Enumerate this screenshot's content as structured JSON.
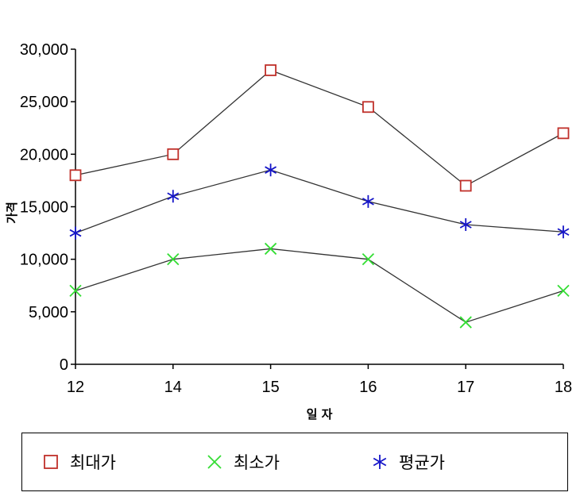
{
  "chart_data": {
    "type": "line",
    "categories": [
      "12",
      "14",
      "15",
      "16",
      "17",
      "18"
    ],
    "series": [
      {
        "name": "최대가",
        "values": [
          18000,
          20000,
          28000,
          24500,
          17000,
          22000
        ],
        "color": "#c0302a",
        "marker": "square"
      },
      {
        "name": "최소가",
        "values": [
          7000,
          10000,
          11000,
          10000,
          4000,
          7000
        ],
        "color": "#33dd33",
        "marker": "x"
      },
      {
        "name": "평균가",
        "values": [
          12500,
          16000,
          18500,
          15500,
          13300,
          12600
        ],
        "color": "#1515c8",
        "marker": "asterisk"
      }
    ],
    "xlabel": "일 자",
    "ylabel": "가격",
    "ylim": [
      0,
      30000
    ],
    "yticks": [
      0,
      5000,
      10000,
      15000,
      20000,
      25000,
      30000
    ],
    "ytick_labels": [
      "0",
      "5,000",
      "10,000",
      "15,000",
      "20,000",
      "25,000",
      "30,000"
    ],
    "line_color": "#333333",
    "grid": false,
    "legend_position": "bottom"
  }
}
